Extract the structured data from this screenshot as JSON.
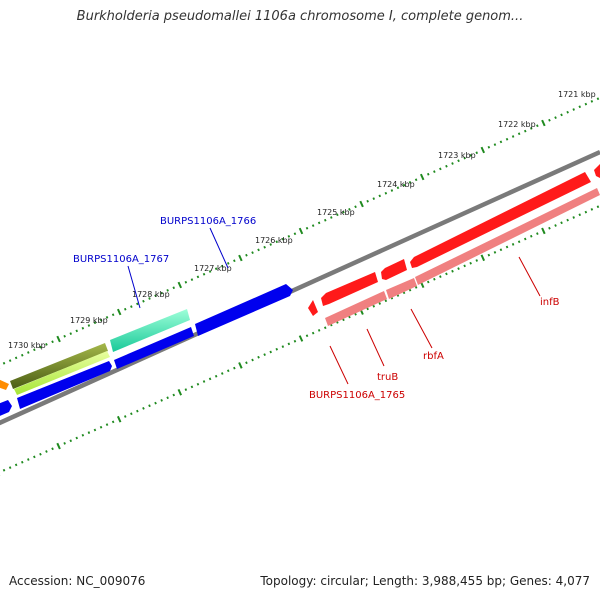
{
  "title": "Burkholderia pseudomallei 1106a chromosome I, complete genom...",
  "footer": {
    "accession": "Accession: NC_009076",
    "summary": "Topology: circular; Length: 3,988,455 bp; Genes: 4,077"
  },
  "colors": {
    "backbone": "#7a7a7a",
    "ticks": "#1f8a1f",
    "forward_gene": "#0000ee",
    "reverse_gene": "#ff1a1a",
    "reverse_cds": "#f08080",
    "forward_label": "#0000cc",
    "reverse_label": "#cc0000"
  },
  "kbp_labels": [
    "1721 kbp",
    "1722 kbp",
    "1723 kbp",
    "1724 kbp",
    "1725 kbp",
    "1726 kbp",
    "1727 kbp",
    "1728 kbp",
    "1729 kbp",
    "1730 kbp"
  ],
  "gene_labels": {
    "forward": [
      "BURPS1106A_1766",
      "BURPS1106A_1767"
    ],
    "reverse": [
      "infB",
      "rbfA",
      "truB",
      "BURPS1106A_1765"
    ]
  }
}
